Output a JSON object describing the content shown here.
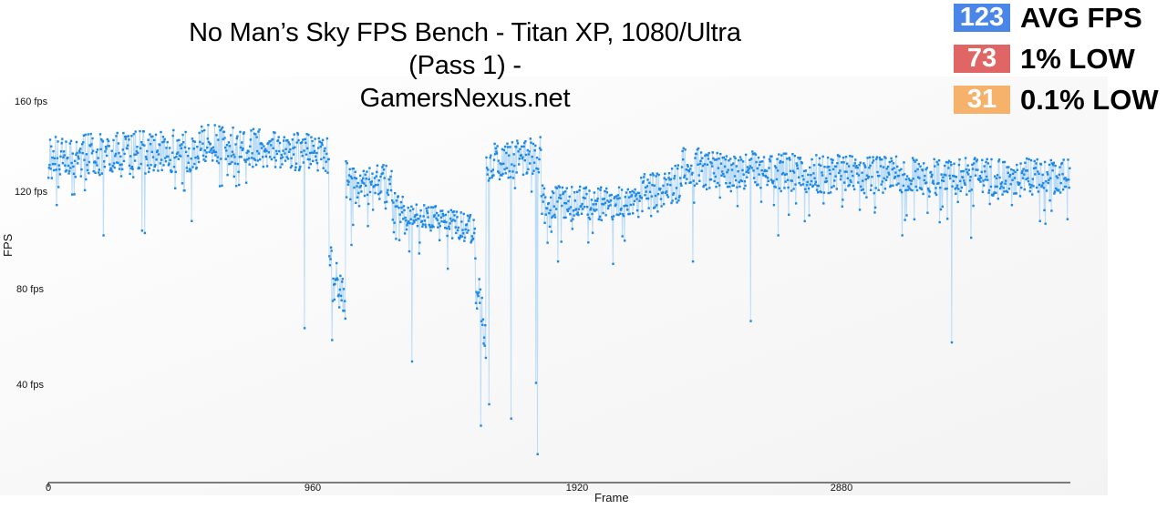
{
  "header": {
    "title_line1": "No Man’s Sky FPS Bench - Titan XP, 1080/Ultra (Pass 1) -",
    "title_line2": "GamersNexus.net"
  },
  "stats": [
    {
      "value": "123",
      "label": "AVG FPS",
      "color": "#4a86e8"
    },
    {
      "value": "73",
      "label": "1% LOW",
      "color": "#e06666"
    },
    {
      "value": "31",
      "label": "0.1% LOW",
      "color": "#f6b26b"
    }
  ],
  "chart_data": {
    "type": "scatter",
    "title": "No Man’s Sky FPS Bench - Titan XP, 1080/Ultra (Pass 1) - GamersNexus.net",
    "xlabel": "Frame",
    "ylabel": "FPS",
    "x_ticks": [
      0,
      960,
      1920,
      2880
    ],
    "x_tick_labels": [
      "0",
      "960",
      "1920",
      "2880"
    ],
    "y_ticks": [
      40,
      80,
      120,
      160
    ],
    "y_tick_labels": [
      "40 fps",
      "80 fps",
      "120 fps",
      "160 fps"
    ],
    "xlim": [
      0,
      3710
    ],
    "ylim": [
      0,
      160
    ],
    "grid": false,
    "legend": "none",
    "series_color": "#1e88e5",
    "line_color": "#bcdcf7",
    "summary": {
      "avg_fps": 123,
      "one_percent_low": 73,
      "point_one_percent_low": 31
    },
    "segments": [
      {
        "from": 0,
        "to": 550,
        "mean_start": 137,
        "mean_end": 140,
        "spread": 9
      },
      {
        "from": 550,
        "to": 1020,
        "mean_start": 143,
        "mean_end": 138,
        "spread": 8
      },
      {
        "from": 1020,
        "to": 1080,
        "mean_start": 95,
        "mean_end": 75,
        "spread": 7
      },
      {
        "from": 1080,
        "to": 1250,
        "mean_start": 128,
        "mean_end": 125,
        "spread": 8
      },
      {
        "from": 1250,
        "to": 1550,
        "mean_start": 116,
        "mean_end": 106,
        "spread": 6
      },
      {
        "from": 1550,
        "to": 1590,
        "mean_start": 85,
        "mean_end": 60,
        "spread": 10
      },
      {
        "from": 1590,
        "to": 1790,
        "mean_start": 134,
        "mean_end": 138,
        "spread": 8
      },
      {
        "from": 1790,
        "to": 2150,
        "mean_start": 118,
        "mean_end": 117,
        "spread": 7
      },
      {
        "from": 2150,
        "to": 2300,
        "mean_start": 122,
        "mean_end": 126,
        "spread": 8
      },
      {
        "from": 2300,
        "to": 2750,
        "mean_start": 133,
        "mean_end": 130,
        "spread": 8
      },
      {
        "from": 2750,
        "to": 3710,
        "mean_start": 130,
        "mean_end": 128,
        "spread": 8
      }
    ],
    "spikes": [
      {
        "frame": 340,
        "fps": 106
      },
      {
        "frame": 200,
        "fps": 104
      },
      {
        "frame": 350,
        "fps": 105
      },
      {
        "frame": 520,
        "fps": 110
      },
      {
        "frame": 930,
        "fps": 65
      },
      {
        "frame": 1030,
        "fps": 60
      },
      {
        "frame": 1100,
        "fps": 100
      },
      {
        "frame": 1320,
        "fps": 51
      },
      {
        "frame": 1450,
        "fps": 90
      },
      {
        "frame": 1570,
        "fps": 24
      },
      {
        "frame": 1600,
        "fps": 33
      },
      {
        "frame": 1680,
        "fps": 27
      },
      {
        "frame": 1775,
        "fps": 12
      },
      {
        "frame": 1770,
        "fps": 42
      },
      {
        "frame": 1850,
        "fps": 93
      },
      {
        "frame": 1960,
        "fps": 101
      },
      {
        "frame": 2050,
        "fps": 92
      },
      {
        "frame": 2340,
        "fps": 93
      },
      {
        "frame": 2550,
        "fps": 68
      },
      {
        "frame": 2650,
        "fps": 104
      },
      {
        "frame": 3100,
        "fps": 104
      },
      {
        "frame": 3280,
        "fps": 59
      },
      {
        "frame": 3350,
        "fps": 103
      },
      {
        "frame": 3600,
        "fps": 110
      }
    ],
    "seed": 1337,
    "step": 2
  }
}
